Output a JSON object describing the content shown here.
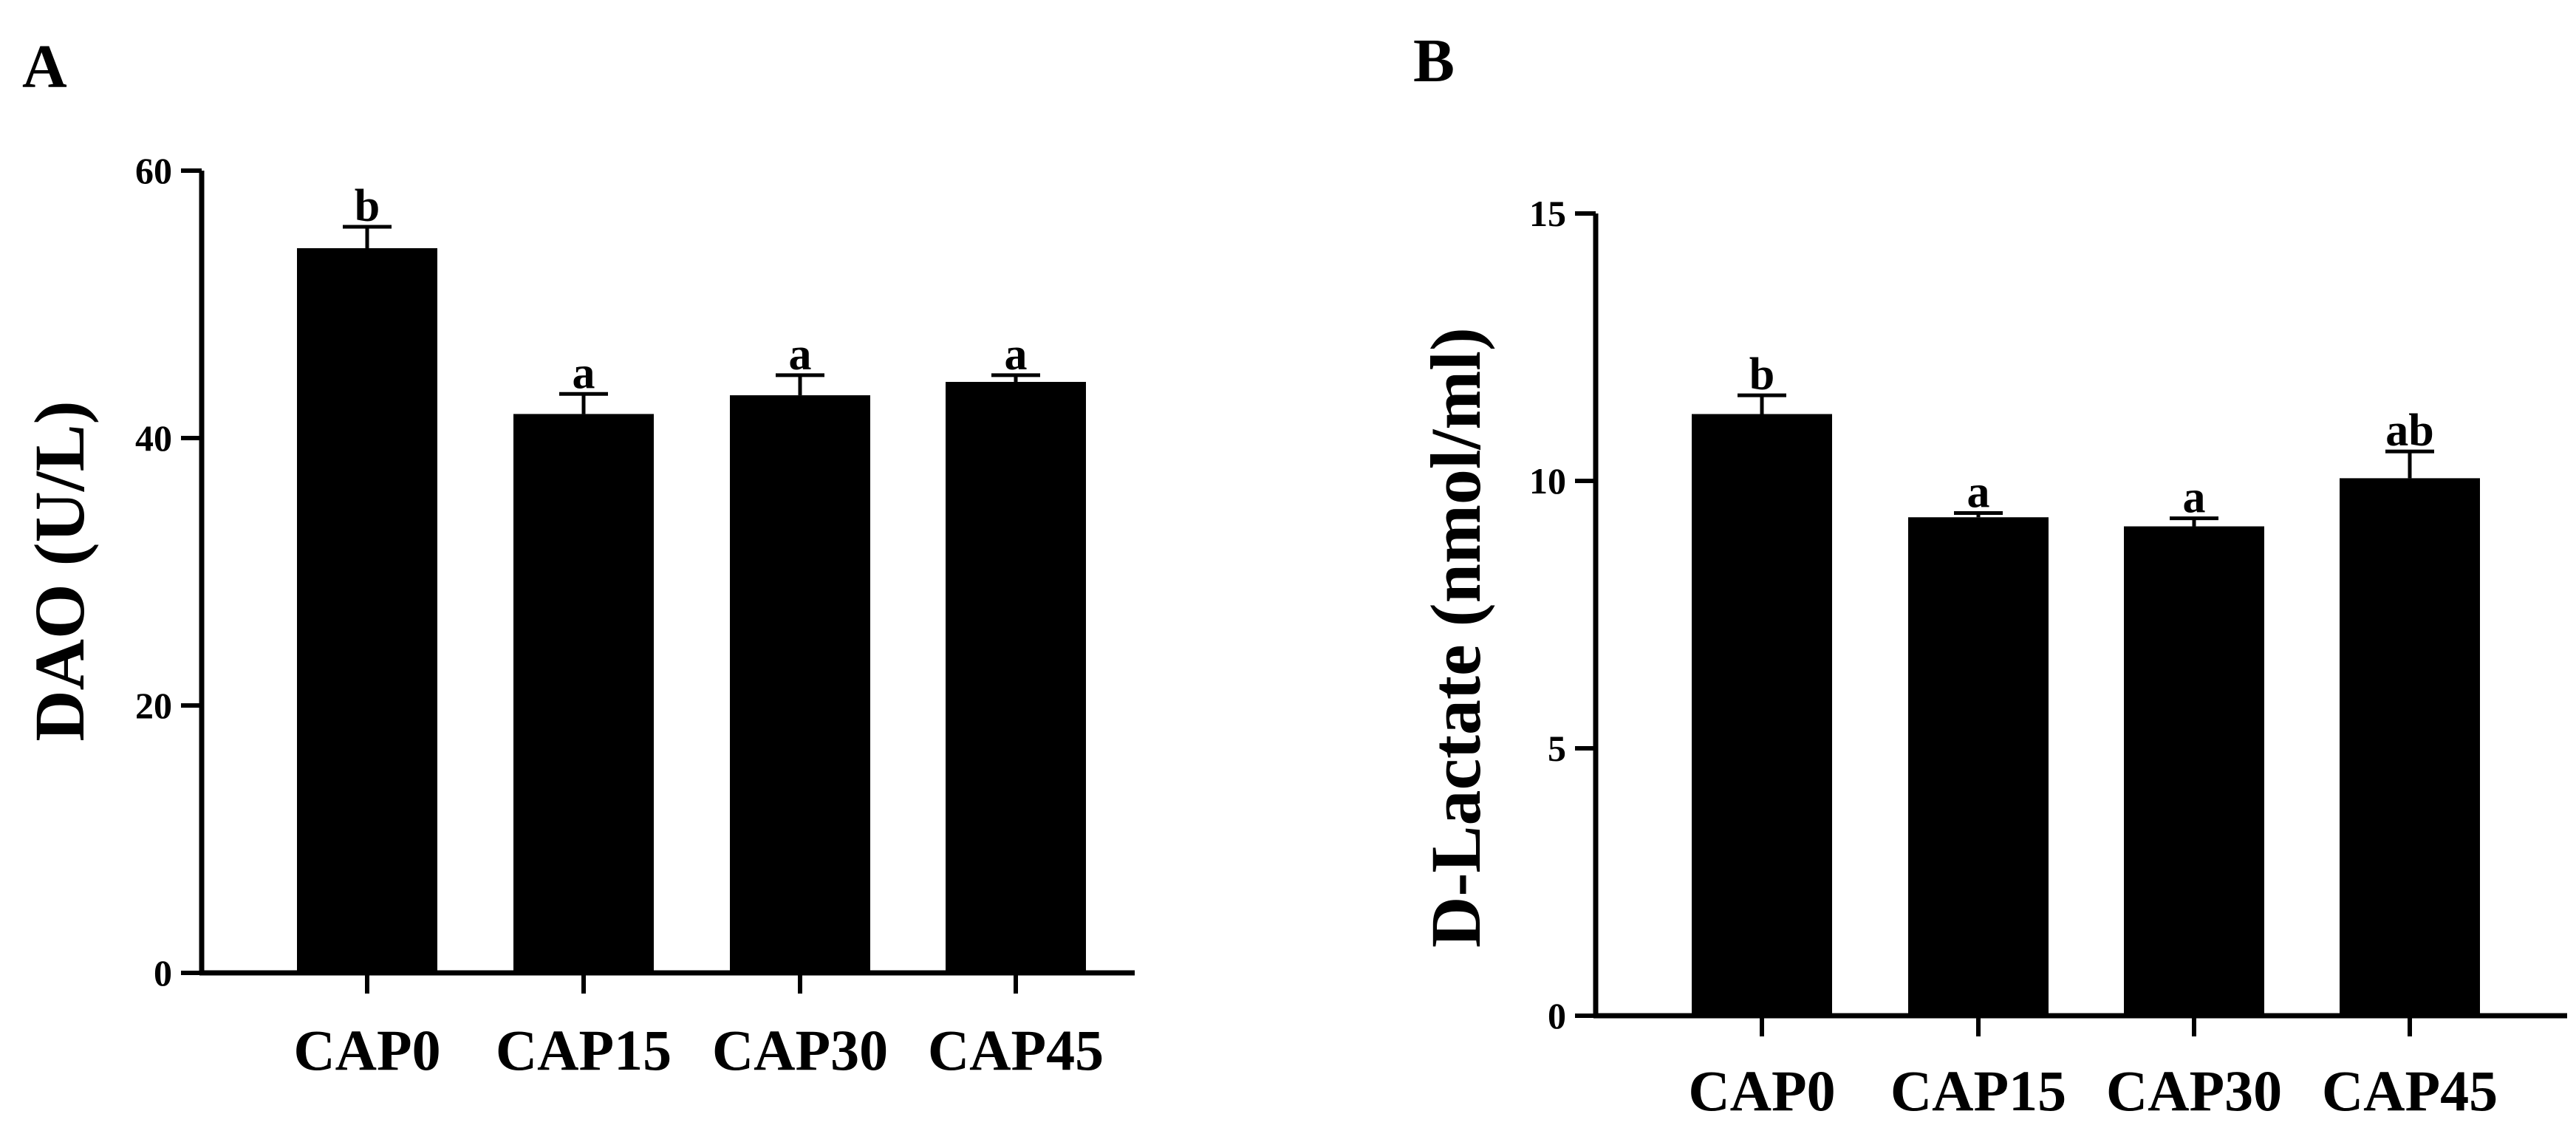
{
  "chart_data": [
    {
      "type": "bar",
      "panel": "A",
      "ylabel": "DAO (U/L)",
      "xlabel": "",
      "categories": [
        "CAP0",
        "CAP15",
        "CAP30",
        "CAP45"
      ],
      "values": [
        54.2,
        41.8,
        43.2,
        44.2
      ],
      "errors": [
        1.6,
        1.5,
        1.5,
        0.5
      ],
      "significance": [
        "b",
        "a",
        "a",
        "a"
      ],
      "ylim": [
        0,
        60
      ],
      "yticks": [
        0,
        20,
        40,
        60
      ],
      "bar_color": "#000000",
      "grid": false
    },
    {
      "type": "bar",
      "panel": "B",
      "ylabel": "D-Lactate (nmol/ml)",
      "xlabel": "",
      "categories": [
        "CAP0",
        "CAP15",
        "CAP30",
        "CAP45"
      ],
      "values": [
        11.25,
        9.32,
        9.15,
        10.05
      ],
      "errors": [
        0.35,
        0.08,
        0.15,
        0.5
      ],
      "significance": [
        "b",
        "a",
        "a",
        "ab"
      ],
      "ylim": [
        0,
        15
      ],
      "yticks": [
        0,
        5,
        10,
        15
      ],
      "bar_color": "#000000",
      "grid": false
    }
  ]
}
